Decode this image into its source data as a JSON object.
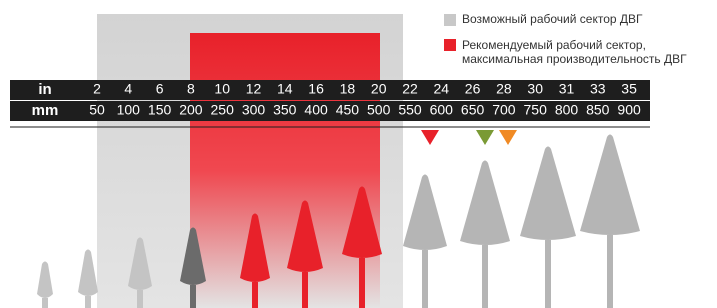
{
  "legend": [
    {
      "label": "Возможный рабочий сектор ДВГ"
    },
    {
      "line1": "Рекомендуемый рабочий сектор,",
      "line2": "максимальная производительность ДВГ"
    }
  ],
  "table": {
    "rows": [
      [
        "in",
        2,
        4,
        6,
        8,
        10,
        12,
        14,
        16,
        18,
        20,
        22,
        24,
        26,
        28,
        30,
        31,
        33,
        35
      ],
      [
        "mm",
        50,
        100,
        150,
        200,
        250,
        300,
        350,
        400,
        450,
        500,
        550,
        600,
        650,
        700,
        750,
        800,
        850,
        900
      ]
    ]
  }
}
